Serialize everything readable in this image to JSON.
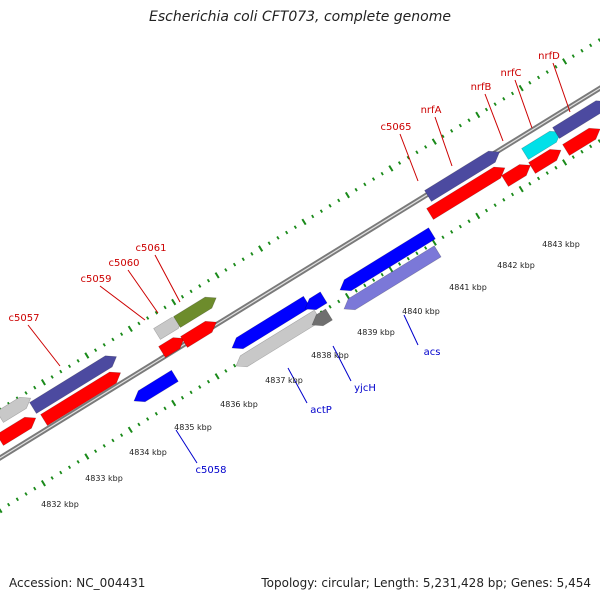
{
  "title": "Escherichia coli CFT073, complete genome",
  "accession": "Accession: NC_004431",
  "summary": "Topology: circular; Length: 5,231,428 bp; Genes: 5,454",
  "colors": {
    "label_red": "#cc0000",
    "label_blue": "#0000cc",
    "gene_red": "#ff0000",
    "gene_blue": "#0000ff",
    "gene_navy": "#4c4aa0",
    "gene_lavender": "#7b78d8",
    "gene_gray": "#c8c8c8",
    "gene_darkgray": "#6f6f6f",
    "gene_olive": "#6d8c2c",
    "gene_cyan": "#00e0e8",
    "ruler_green": "#1a8a1a",
    "backbone": "#7a7a7a"
  },
  "tick_labels": [
    "4832 kbp",
    "4833 kbp",
    "4834 kbp",
    "4835 kbp",
    "4836 kbp",
    "4837 kbp",
    "4838 kbp",
    "4839 kbp",
    "4840 kbp",
    "4841 kbp",
    "4842 kbp",
    "4843 kbp"
  ],
  "gene_labels": {
    "top": [
      "c5057",
      "c5059",
      "c5060",
      "c5061",
      "c5065",
      "nrfA",
      "nrfB",
      "nrfC",
      "nrfD"
    ],
    "bottom": [
      "c5058",
      "actP",
      "yjcH",
      "acs"
    ]
  }
}
